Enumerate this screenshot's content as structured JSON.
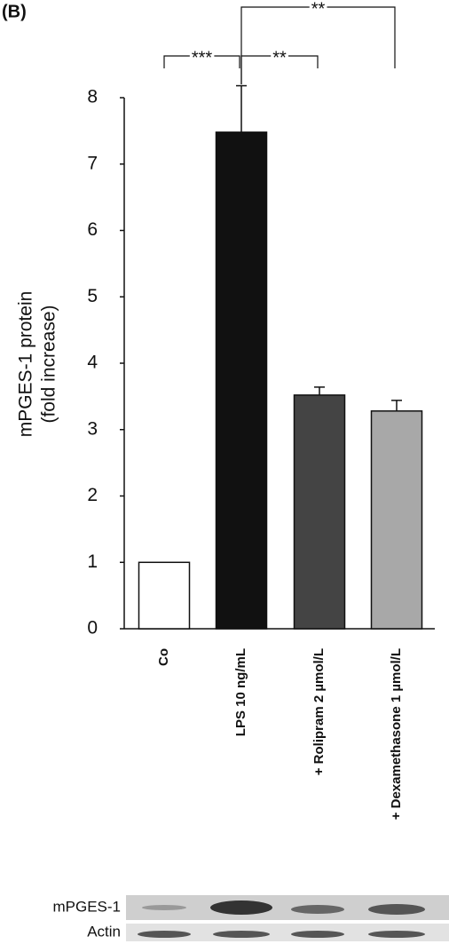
{
  "panel_label": "(B)",
  "chart_data": {
    "type": "bar",
    "ylabel": [
      "mPGES-1 protein",
      "(fold increase)"
    ],
    "categories": [
      "Co",
      "LPS 10 ng/mL",
      "+ Rolipram 2 µmol/L",
      "+ Dexamethasone 1 µmol/L"
    ],
    "values": [
      1.0,
      7.48,
      3.52,
      3.28
    ],
    "errors": [
      0,
      0.7,
      0.12,
      0.16
    ],
    "colors": [
      "#ffffff",
      "#111111",
      "#444444",
      "#a8a8a8"
    ],
    "ylim": [
      0,
      8
    ],
    "yticks": [
      0,
      1,
      2,
      3,
      4,
      5,
      6,
      7,
      8
    ],
    "grid": false,
    "annotations": [
      "***",
      "**",
      "**"
    ]
  },
  "blot_labels": [
    "mPGES-1",
    "Actin"
  ]
}
